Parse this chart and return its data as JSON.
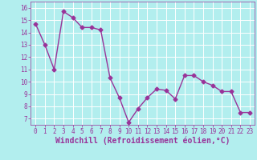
{
  "x": [
    0,
    1,
    2,
    3,
    4,
    5,
    6,
    7,
    8,
    9,
    10,
    11,
    12,
    13,
    14,
    15,
    16,
    17,
    18,
    19,
    20,
    21,
    22,
    23
  ],
  "y": [
    14.7,
    13.0,
    11.0,
    15.7,
    15.2,
    14.4,
    14.4,
    14.2,
    10.3,
    8.7,
    6.7,
    7.8,
    8.7,
    9.4,
    9.3,
    8.6,
    10.5,
    10.5,
    10.0,
    9.7,
    9.2,
    9.2,
    7.5,
    7.5
  ],
  "line_color": "#993399",
  "marker": "D",
  "marker_size": 2.5,
  "bg_color": "#b2eeee",
  "grid_color": "#ffffff",
  "xlabel": "Windchill (Refroidissement éolien,°C)",
  "xlabel_color": "#993399",
  "tick_color": "#993399",
  "ylim": [
    6.5,
    16.5
  ],
  "xlim": [
    -0.5,
    23.5
  ],
  "yticks": [
    7,
    8,
    9,
    10,
    11,
    12,
    13,
    14,
    15,
    16
  ],
  "xticks": [
    0,
    1,
    2,
    3,
    4,
    5,
    6,
    7,
    8,
    9,
    10,
    11,
    12,
    13,
    14,
    15,
    16,
    17,
    18,
    19,
    20,
    21,
    22,
    23
  ],
  "tick_fontsize": 5.5,
  "xlabel_fontsize": 7.0,
  "line_width": 1.0
}
